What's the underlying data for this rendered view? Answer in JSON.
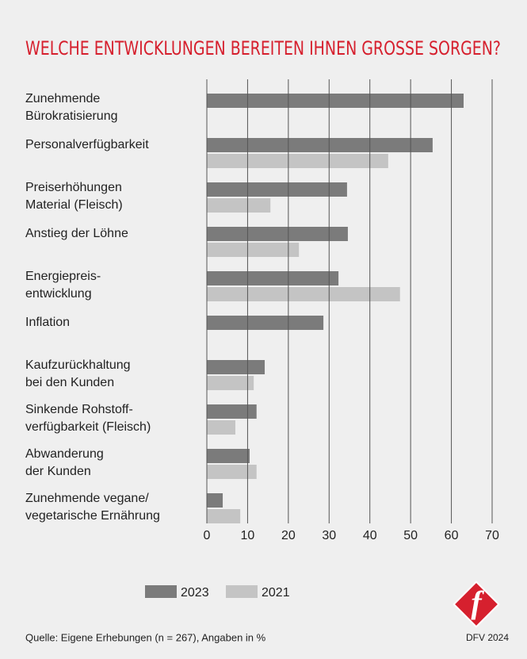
{
  "chart_data": {
    "type": "hbar",
    "title": "WELCHE ENTWICKLUNGEN BEREITEN IHNEN GROSSE SORGEN?",
    "categories": [
      [
        "Zunehmende",
        "Bürokratisierung"
      ],
      [
        "Personalverfügbarkeit"
      ],
      [
        "Preiserhöhungen",
        "Material (Fleisch)"
      ],
      [
        "Anstieg der Löhne"
      ],
      [
        "Energiepreis-",
        "entwicklung"
      ],
      [
        "Inflation"
      ],
      [
        "Kaufzurückhaltung",
        "bei den Kunden"
      ],
      [
        "Sinkende Rohstoff-",
        "verfügbarkeit (Fleisch)"
      ],
      [
        "Abwanderung",
        "der Kunden"
      ],
      [
        "Zunehmende vegane/",
        "vegetarische Ernährung"
      ]
    ],
    "series": [
      {
        "name": "2023",
        "color": "#7b7b7b",
        "values": [
          63,
          55.4,
          34.4,
          34.6,
          32.3,
          28.6,
          14.2,
          12.2,
          10.5,
          3.9
        ]
      },
      {
        "name": "2021",
        "color": "#c4c4c4",
        "values": [
          null,
          44.5,
          15.6,
          22.6,
          47.4,
          null,
          11.5,
          7,
          12.2,
          8.2
        ]
      }
    ],
    "xlim": [
      0,
      70
    ],
    "xticks": [
      0,
      10,
      20,
      30,
      40,
      50,
      60,
      70
    ],
    "grid": true,
    "source": "Quelle: Eigene Erhebungen (n = 267), Angaben in %",
    "logo_caption": "DFV 2024"
  }
}
